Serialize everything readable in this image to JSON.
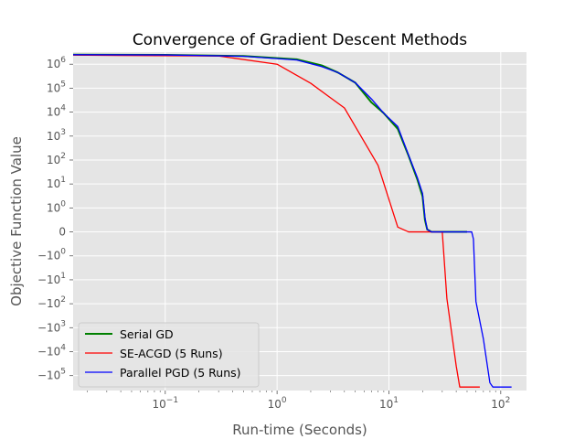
{
  "chart_data": {
    "type": "line",
    "title": "Convergence of Gradient Descent Methods",
    "xlabel": "Run-time (Seconds)",
    "ylabel": "Objective Function Value",
    "x_scale": "log",
    "y_scale": "symlog",
    "xlim": [
      0.015,
      170
    ],
    "grid": true,
    "legend_position": "lower-left",
    "x_ticks": [
      {
        "value": 0.1,
        "base": "10",
        "exp": "−1"
      },
      {
        "value": 1,
        "base": "10",
        "exp": "0"
      },
      {
        "value": 10,
        "base": "10",
        "exp": "1"
      },
      {
        "value": 100,
        "base": "10",
        "exp": "2"
      }
    ],
    "y_ticks": [
      {
        "value": 1000000,
        "base": "10",
        "exp": "6"
      },
      {
        "value": 100000,
        "base": "10",
        "exp": "5"
      },
      {
        "value": 10000,
        "base": "10",
        "exp": "4"
      },
      {
        "value": 1000,
        "base": "10",
        "exp": "3"
      },
      {
        "value": 100,
        "base": "10",
        "exp": "2"
      },
      {
        "value": 10,
        "base": "10",
        "exp": "1"
      },
      {
        "value": 1,
        "base": "10",
        "exp": "0"
      },
      {
        "value": 0,
        "base": "0",
        "exp": ""
      },
      {
        "value": -1,
        "base": "−10",
        "exp": "0"
      },
      {
        "value": -10,
        "base": "−10",
        "exp": "1"
      },
      {
        "value": -100,
        "base": "−10",
        "exp": "2"
      },
      {
        "value": -1000,
        "base": "−10",
        "exp": "3"
      },
      {
        "value": -10000,
        "base": "−10",
        "exp": "4"
      },
      {
        "value": -100000,
        "base": "−10",
        "exp": "5"
      }
    ],
    "series": [
      {
        "name": "Serial GD",
        "color": "#008000",
        "stroke": 2,
        "points": [
          [
            0.015,
            2500000
          ],
          [
            0.1,
            2450000
          ],
          [
            0.5,
            2200000
          ],
          [
            1.5,
            1600000
          ],
          [
            2.5,
            900000
          ],
          [
            3.5,
            450000
          ],
          [
            5,
            170000
          ],
          [
            7,
            25000
          ],
          [
            9,
            9000
          ],
          [
            12,
            2000
          ],
          [
            15,
            150
          ],
          [
            18,
            15
          ],
          [
            20,
            3
          ],
          [
            21,
            0.5
          ],
          [
            22,
            0.1
          ],
          [
            24,
            0
          ],
          [
            50,
            0
          ]
        ]
      },
      {
        "name": "SE-ACGD (5 Runs)",
        "color": "#ff0000",
        "stroke": 1.3,
        "points": [
          [
            0.015,
            2400000
          ],
          [
            0.3,
            2200000
          ],
          [
            1,
            1000000
          ],
          [
            2,
            160000
          ],
          [
            3,
            40000
          ],
          [
            4,
            15000
          ],
          [
            8,
            60
          ],
          [
            12,
            0.2
          ],
          [
            15,
            0
          ],
          [
            30,
            0
          ],
          [
            33,
            -60
          ],
          [
            40,
            -40000
          ],
          [
            43,
            -300000
          ],
          [
            65,
            -300000
          ]
        ]
      },
      {
        "name": "Parallel PGD (5 Runs)",
        "color": "#0000ff",
        "stroke": 1.3,
        "points": [
          [
            0.015,
            2500000
          ],
          [
            0.1,
            2450000
          ],
          [
            0.5,
            2150000
          ],
          [
            1.5,
            1500000
          ],
          [
            2.5,
            800000
          ],
          [
            3.5,
            450000
          ],
          [
            5,
            170000
          ],
          [
            7,
            35000
          ],
          [
            9,
            9000
          ],
          [
            12,
            2500
          ],
          [
            15,
            160
          ],
          [
            18,
            18
          ],
          [
            20,
            4
          ],
          [
            21,
            0.6
          ],
          [
            22,
            0.1
          ],
          [
            24,
            0
          ],
          [
            55,
            0
          ],
          [
            57,
            -0.3
          ],
          [
            60,
            -80
          ],
          [
            70,
            -3000
          ],
          [
            80,
            -200000
          ],
          [
            85,
            -300000
          ],
          [
            125,
            -300000
          ]
        ]
      }
    ]
  }
}
